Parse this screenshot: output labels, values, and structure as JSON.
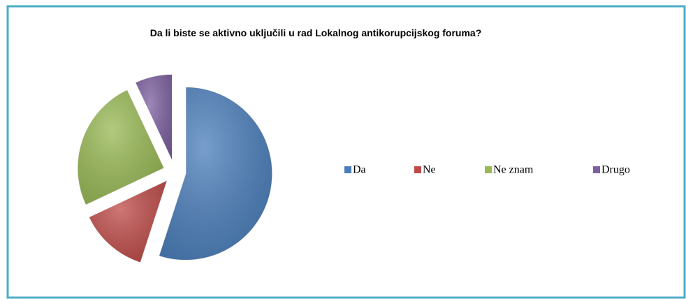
{
  "chart_data": {
    "type": "pie",
    "title": "Da li biste se aktivno uključili u rad Lokalnog antikorupcijskog foruma?",
    "categories": [
      "Da",
      "Ne",
      "Ne znam",
      "Drugo"
    ],
    "values": [
      55,
      13,
      25,
      7
    ],
    "colors": [
      "#4a7ebb",
      "#be4b48",
      "#98b954",
      "#7d60a0"
    ],
    "legend": "right"
  }
}
